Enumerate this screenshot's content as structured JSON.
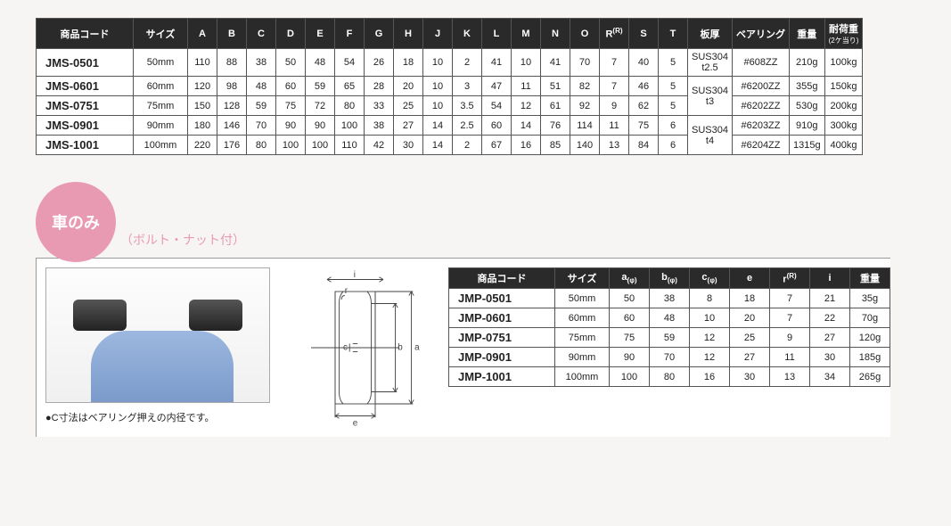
{
  "table1": {
    "headers": [
      "商品コード",
      "サイズ",
      "A",
      "B",
      "C",
      "D",
      "E",
      "F",
      "G",
      "H",
      "J",
      "K",
      "L",
      "M",
      "N",
      "O",
      "R",
      "S",
      "T",
      "板厚",
      "ベアリング",
      "重量",
      "耐荷重"
    ],
    "header_sub": {
      "22": "(2ケ当り)",
      "16": "(R)"
    },
    "rows": [
      {
        "code": "JMS-0501",
        "size": "50mm",
        "d": [
          "110",
          "88",
          "38",
          "50",
          "48",
          "54",
          "26",
          "18",
          "10",
          "2",
          "41",
          "10",
          "41",
          "70",
          "7",
          "40",
          "5"
        ],
        "plate": "SUS304\nt2.5",
        "bearing": "#608ZZ",
        "weight": "210g",
        "load": "100kg"
      },
      {
        "code": "JMS-0601",
        "size": "60mm",
        "d": [
          "120",
          "98",
          "48",
          "60",
          "59",
          "65",
          "28",
          "20",
          "10",
          "3",
          "47",
          "11",
          "51",
          "82",
          "7",
          "46",
          "5"
        ],
        "plate": "SUS304\nt3",
        "bearing": "#6200ZZ",
        "weight": "355g",
        "load": "150kg"
      },
      {
        "code": "JMS-0751",
        "size": "75mm",
        "d": [
          "150",
          "128",
          "59",
          "75",
          "72",
          "80",
          "33",
          "25",
          "10",
          "3.5",
          "54",
          "12",
          "61",
          "92",
          "9",
          "62",
          "5"
        ],
        "plate": "",
        "bearing": "#6202ZZ",
        "weight": "530g",
        "load": "200kg"
      },
      {
        "code": "JMS-0901",
        "size": "90mm",
        "d": [
          "180",
          "146",
          "70",
          "90",
          "90",
          "100",
          "38",
          "27",
          "14",
          "2.5",
          "60",
          "14",
          "76",
          "114",
          "11",
          "75",
          "6"
        ],
        "plate": "SUS304\nt4",
        "bearing": "#6203ZZ",
        "weight": "910g",
        "load": "300kg"
      },
      {
        "code": "JMS-1001",
        "size": "100mm",
        "d": [
          "220",
          "176",
          "80",
          "100",
          "100",
          "110",
          "42",
          "30",
          "14",
          "2",
          "67",
          "16",
          "85",
          "140",
          "13",
          "84",
          "6"
        ],
        "plate": "",
        "bearing": "#6204ZZ",
        "weight": "1315g",
        "load": "400kg"
      }
    ],
    "plate_rowspans": [
      1,
      2,
      0,
      2,
      0
    ]
  },
  "section2": {
    "badge": "車のみ",
    "subtitle": "（ボルト・ナット付）",
    "note": "●C寸法はベアリング押えの内径です。",
    "diagram_labels": {
      "i": "i",
      "r": "r",
      "c": "c",
      "b": "b",
      "a": "a",
      "e": "e"
    }
  },
  "table2": {
    "headers": [
      "商品コード",
      "サイズ",
      "a(φ)",
      "b(φ)",
      "c(φ)",
      "e",
      "r",
      "i",
      "重量"
    ],
    "header_sup": {
      "6": "(R)"
    },
    "rows": [
      {
        "code": "JMP-0501",
        "size": "50mm",
        "d": [
          "50",
          "38",
          "8",
          "18",
          "7",
          "21"
        ],
        "weight": "35g"
      },
      {
        "code": "JMP-0601",
        "size": "60mm",
        "d": [
          "60",
          "48",
          "10",
          "20",
          "7",
          "22"
        ],
        "weight": "70g"
      },
      {
        "code": "JMP-0751",
        "size": "75mm",
        "d": [
          "75",
          "59",
          "12",
          "25",
          "9",
          "27"
        ],
        "weight": "120g"
      },
      {
        "code": "JMP-0901",
        "size": "90mm",
        "d": [
          "90",
          "70",
          "12",
          "27",
          "11",
          "30"
        ],
        "weight": "185g"
      },
      {
        "code": "JMP-1001",
        "size": "100mm",
        "d": [
          "100",
          "80",
          "16",
          "30",
          "13",
          "34"
        ],
        "weight": "265g"
      }
    ]
  },
  "colors": {
    "header_bg": "#2a2a2a",
    "badge": "#e89ab3",
    "wheel": "#7d9dd0"
  }
}
